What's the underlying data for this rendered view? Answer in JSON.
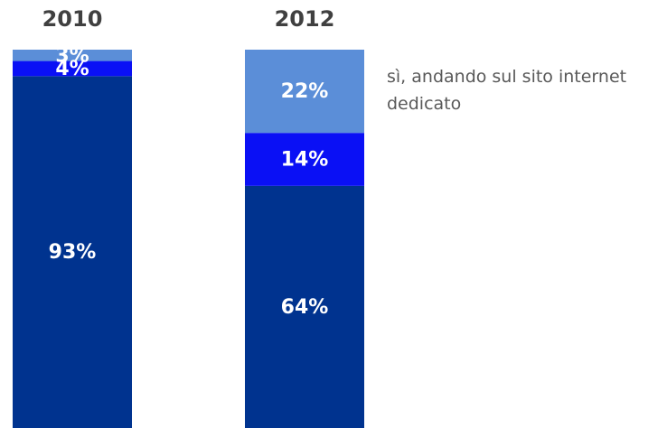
{
  "chart_data": {
    "type": "stacked_bar",
    "categories": [
      "2010",
      "2012"
    ],
    "series": [
      {
        "color": "#00338f",
        "values": [
          93,
          64
        ],
        "value_labels": [
          "93%",
          "64%"
        ]
      },
      {
        "color": "#0a10f5",
        "values": [
          4,
          14
        ],
        "value_labels": [
          "4%",
          "14%"
        ]
      },
      {
        "name": "sì, andando sul sito internet dedicato",
        "color": "#5b8ed8",
        "values": [
          3,
          22
        ],
        "value_labels": [
          "3%",
          "22%"
        ]
      }
    ],
    "ylim": [
      0,
      100
    ]
  }
}
